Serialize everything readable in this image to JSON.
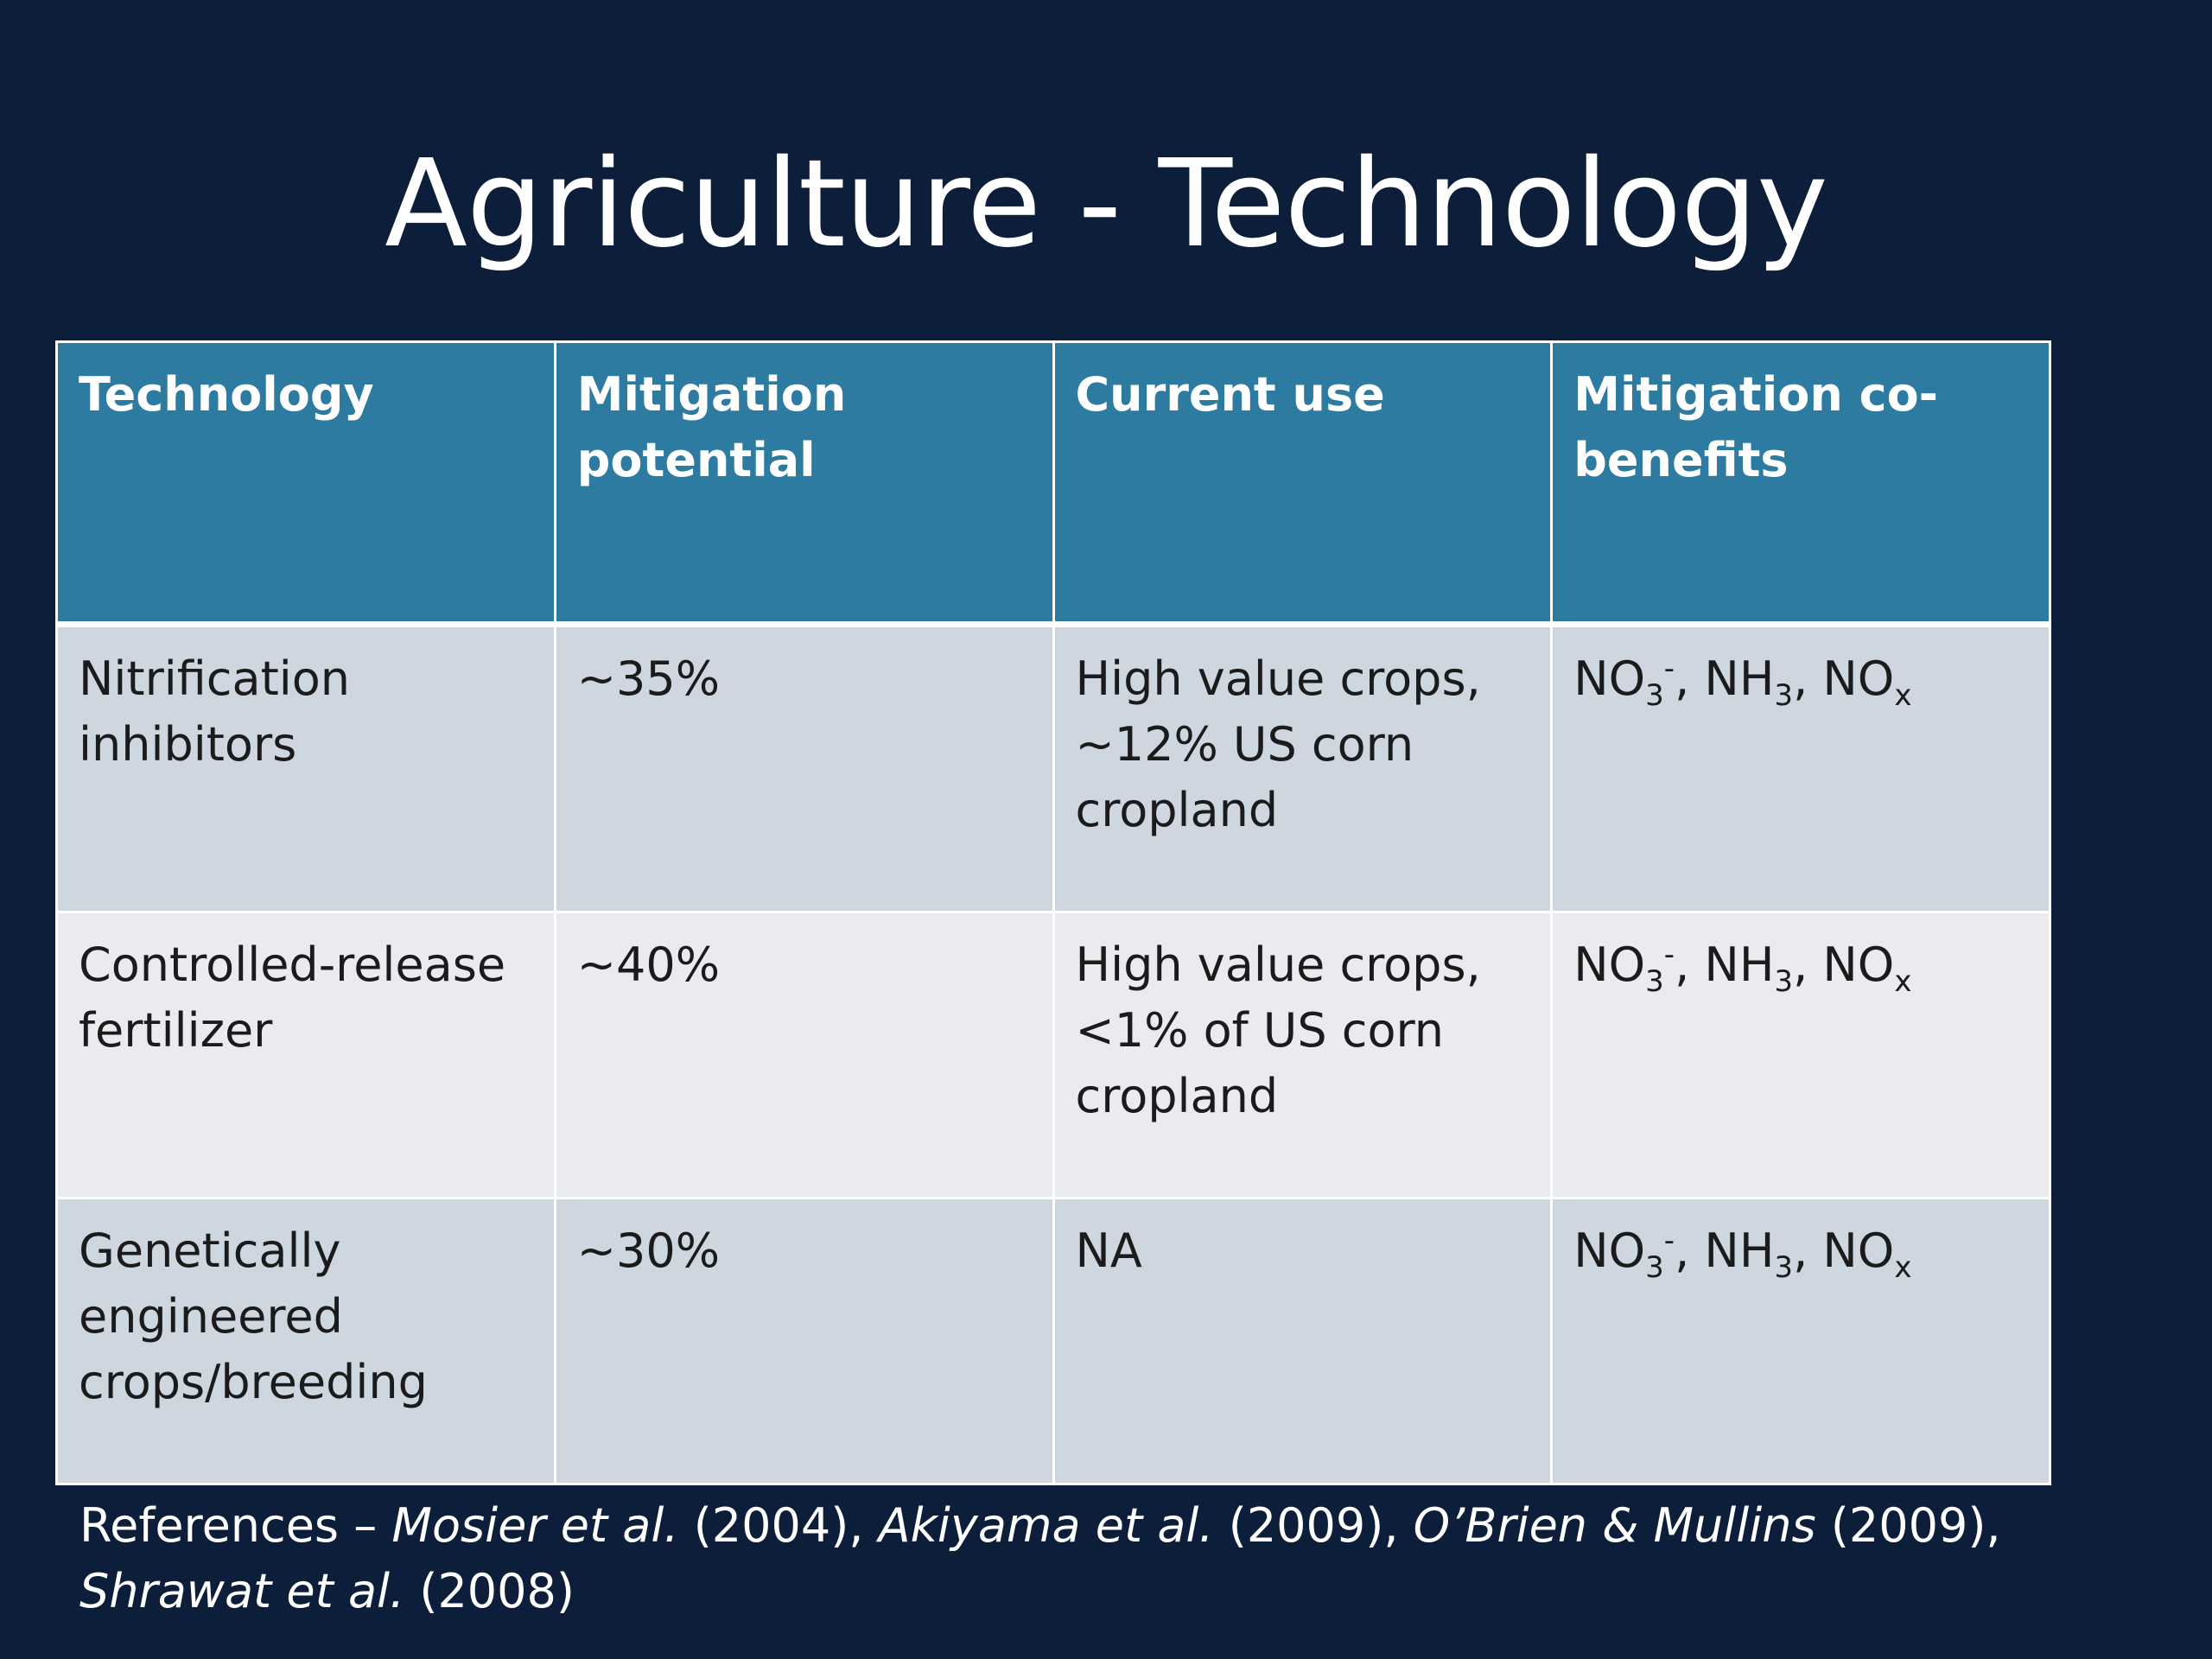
{
  "slide": {
    "title": "Agriculture - Technology"
  },
  "table": {
    "headers": [
      "Technology",
      "Mitigation potential",
      "Current use",
      "Mitigation co-benefits"
    ],
    "rows": [
      {
        "technology": "Nitrification inhibitors",
        "mitigation_potential": "~35%",
        "current_use": "High value crops, ~12% US corn cropland",
        "co_benefits": {
          "no3": "NO",
          "no3_sub": "3",
          "no3_sup": "-",
          "nh3": "NH",
          "nh3_sub": "3",
          "nox": "NO",
          "nox_sub": "x"
        }
      },
      {
        "technology": "Controlled-release fertilizer",
        "mitigation_potential": "~40%",
        "current_use": "High value crops, <1% of US corn cropland",
        "co_benefits": {
          "no3": "NO",
          "no3_sub": "3",
          "no3_sup": "-",
          "nh3": "NH",
          "nh3_sub": "3",
          "nox": "NO",
          "nox_sub": "x"
        }
      },
      {
        "technology": "Genetically engineered crops/breeding",
        "mitigation_potential": "~30%",
        "current_use": "NA",
        "co_benefits": {
          "no3": "NO",
          "no3_sub": "3",
          "no3_sup": "-",
          "nh3": "NH",
          "nh3_sub": "3",
          "nox": "NO",
          "nox_sub": "x"
        }
      }
    ]
  },
  "references": {
    "prefix": "References – ",
    "items": [
      {
        "authors": "Mosier et al.",
        "year": " (2004), "
      },
      {
        "authors": "Akiyama et al.",
        "year": " (2009),  "
      },
      {
        "authors": "O’Brien & Mullins",
        "year": " (2009), "
      },
      {
        "authors": "Shrawat et al.",
        "year": " (2008)"
      }
    ]
  },
  "colors": {
    "background": "#0c1e3a",
    "header_fill": "#2e7ba2",
    "row_odd": "#ced7df",
    "row_even": "#e9ebef"
  }
}
